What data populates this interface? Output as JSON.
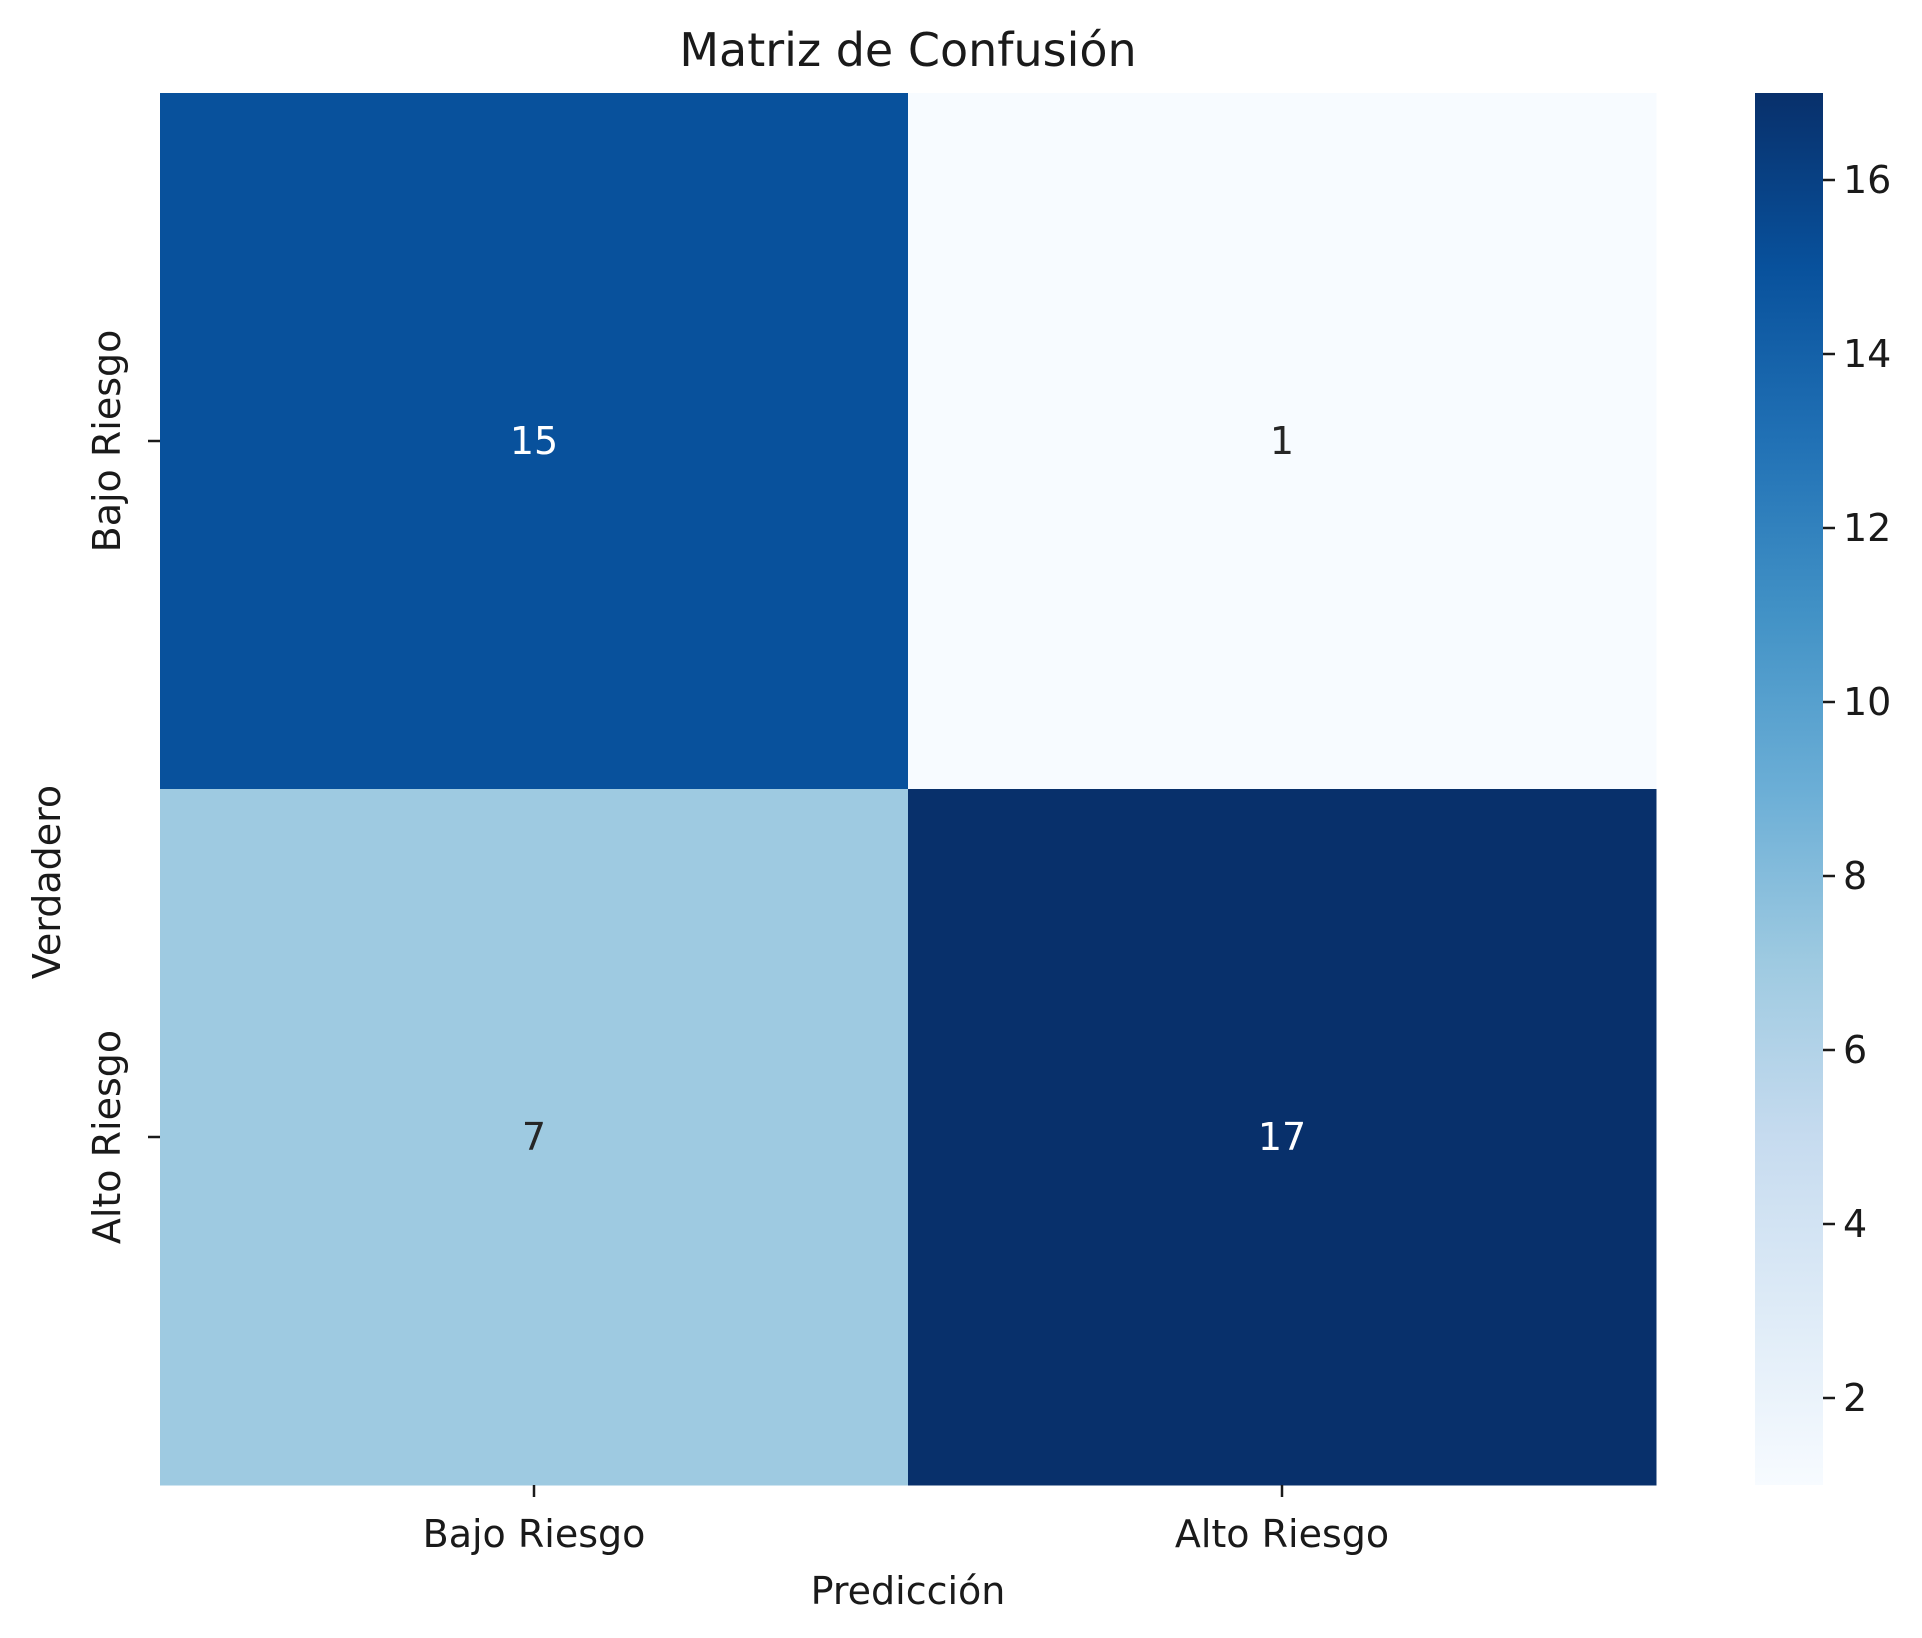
{
  "chart_data": {
    "type": "heatmap",
    "title": "Matriz de Confusión",
    "xlabel": "Predicción",
    "ylabel": "Verdadero",
    "x_categories": [
      "Bajo Riesgo",
      "Alto Riesgo"
    ],
    "y_categories": [
      "Bajo Riesgo",
      "Alto Riesgo"
    ],
    "values": [
      [
        15,
        1
      ],
      [
        7,
        17
      ]
    ],
    "colormap": "Blues",
    "colorbar": {
      "min": 1,
      "max": 17,
      "ticks": [
        2,
        4,
        6,
        8,
        10,
        12,
        14,
        16
      ]
    },
    "colors": {
      "cell_0_0": "#08519c",
      "cell_0_1": "#f7fbff",
      "cell_1_0": "#9ecae1",
      "cell_1_1": "#08306b",
      "text_on_dark": "#ffffff",
      "text_on_light": "#262626"
    }
  }
}
